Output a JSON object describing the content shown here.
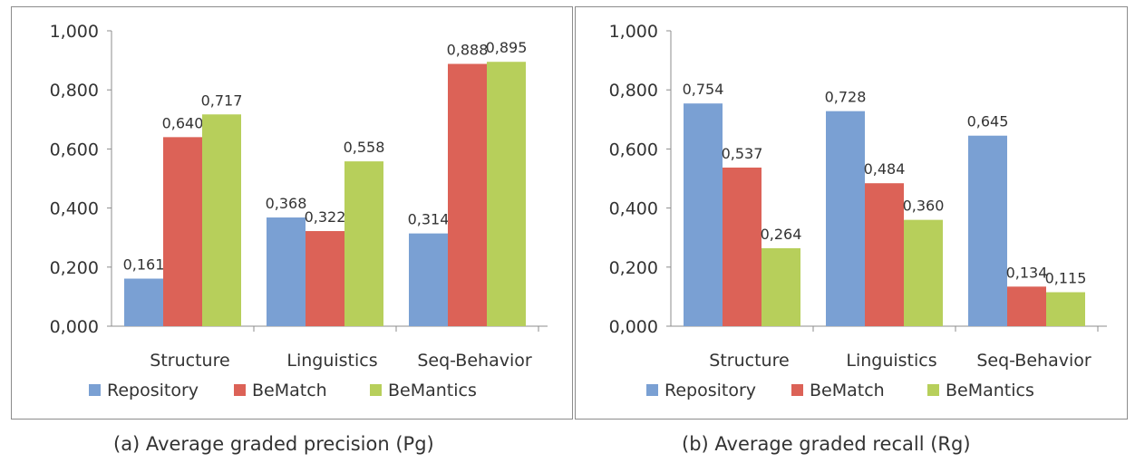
{
  "chart_data": [
    {
      "type": "bar",
      "categories": [
        "Structure",
        "Linguistics",
        "Seq-Behavior"
      ],
      "series": [
        {
          "name": "Repository",
          "values": [
            0.161,
            0.368,
            0.314
          ],
          "labels": [
            "0,161",
            "0,368",
            "0,314"
          ]
        },
        {
          "name": "BeMatch",
          "values": [
            0.64,
            0.322,
            0.888
          ],
          "labels": [
            "0,640",
            "0,322",
            "0,888"
          ]
        },
        {
          "name": "BeMantics",
          "values": [
            0.717,
            0.558,
            0.895
          ],
          "labels": [
            "0,717",
            "0,558",
            "0,895"
          ]
        }
      ],
      "ylim": [
        0,
        1
      ],
      "yticks": [
        "0,000",
        "0,200",
        "0,400",
        "0,600",
        "0,800",
        "1,000"
      ],
      "grid": false,
      "legend": "bottom",
      "caption": "(a)  Average graded precision (Pg)"
    },
    {
      "type": "bar",
      "categories": [
        "Structure",
        "Linguistics",
        "Seq-Behavior"
      ],
      "series": [
        {
          "name": "Repository",
          "values": [
            0.754,
            0.728,
            0.645
          ],
          "labels": [
            "0,754",
            "0,728",
            "0,645"
          ]
        },
        {
          "name": "BeMatch",
          "values": [
            0.537,
            0.484,
            0.134
          ],
          "labels": [
            "0,537",
            "0,484",
            "0,134"
          ]
        },
        {
          "name": "BeMantics",
          "values": [
            0.264,
            0.36,
            0.115
          ],
          "labels": [
            "0,264",
            "0,360",
            "0,115"
          ]
        }
      ],
      "ylim": [
        0,
        1
      ],
      "yticks": [
        "0,000",
        "0,200",
        "0,400",
        "0,600",
        "0,800",
        "1,000"
      ],
      "grid": false,
      "legend": "bottom",
      "caption": "(b)  Average graded recall (Rg)"
    }
  ],
  "colors": {
    "Repository": "#7aa0d3",
    "BeMatch": "#dc6257",
    "BeMantics": "#b7cf5b",
    "axis": "#8c8c8c",
    "text": "#333333"
  }
}
